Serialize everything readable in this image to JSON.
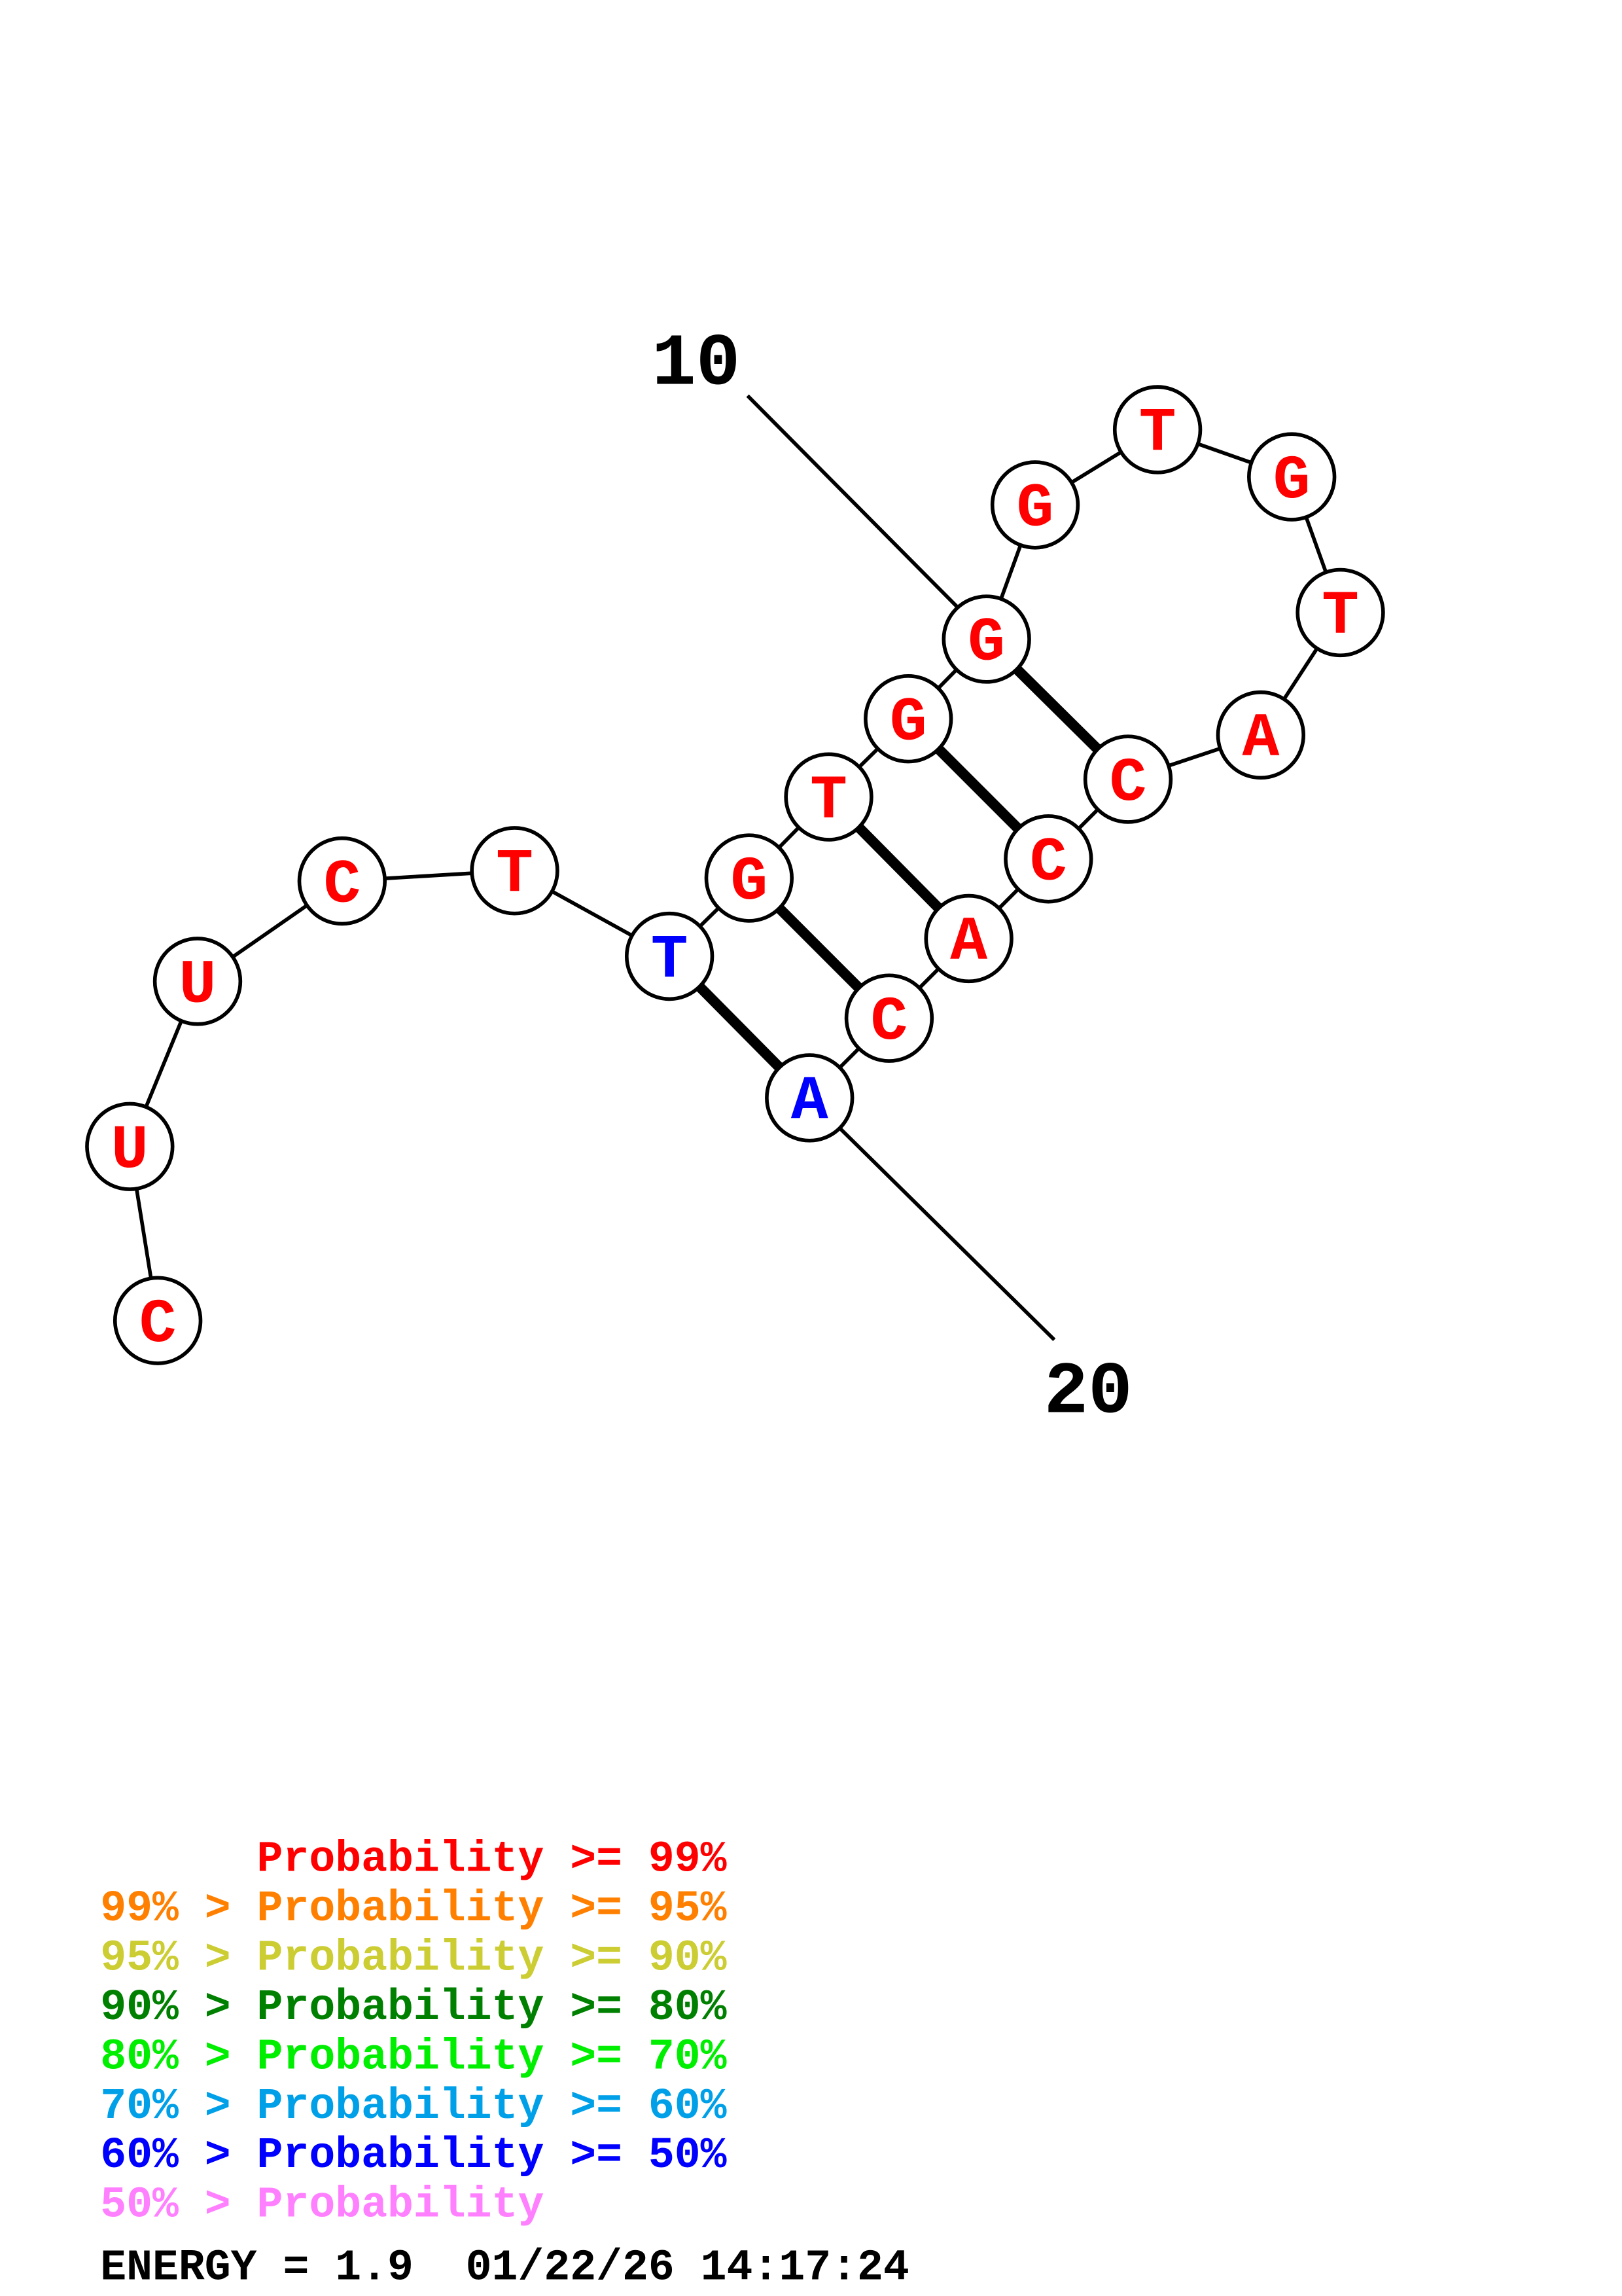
{
  "structure": {
    "sequence": [
      "C",
      "U",
      "U",
      "C",
      "T",
      "T",
      "G",
      "T",
      "G",
      "G",
      "G",
      "T",
      "G",
      "T",
      "A",
      "C",
      "C",
      "A",
      "C",
      "A"
    ],
    "nucleotide_colors": [
      "#ff0000",
      "#ff0000",
      "#ff0000",
      "#ff0000",
      "#ff0000",
      "#0000ff",
      "#ff0000",
      "#ff0000",
      "#ff0000",
      "#ff0000",
      "#ff0000",
      "#ff0000",
      "#ff0000",
      "#ff0000",
      "#ff0000",
      "#ff0000",
      "#ff0000",
      "#ff0000",
      "#ff0000",
      "#0000ff"
    ],
    "base_pairs": [
      [
        6,
        20
      ],
      [
        7,
        19
      ],
      [
        8,
        18
      ],
      [
        9,
        17
      ],
      [
        10,
        16
      ]
    ],
    "position_labels": [
      {
        "position": 10,
        "text": "10"
      },
      {
        "position": 20,
        "text": "20"
      }
    ]
  },
  "legend": [
    {
      "text": "      Probability >= 99%",
      "color": "#ff0000"
    },
    {
      "text": "99% > Probability >= 95%",
      "color": "#ff8000"
    },
    {
      "text": "95% > Probability >= 90%",
      "color": "#cccc33"
    },
    {
      "text": "90% > Probability >= 80%",
      "color": "#008000"
    },
    {
      "text": "80% > Probability >= 70%",
      "color": "#00ee00"
    },
    {
      "text": "70% > Probability >= 60%",
      "color": "#00a0e8"
    },
    {
      "text": "60% > Probability >= 50%",
      "color": "#0000ff"
    },
    {
      "text": "50% > Probability",
      "color": "#ff80ff"
    }
  ],
  "footer": {
    "energy_line": "ENERGY = 1.9  01/22/26 14:17:24"
  }
}
